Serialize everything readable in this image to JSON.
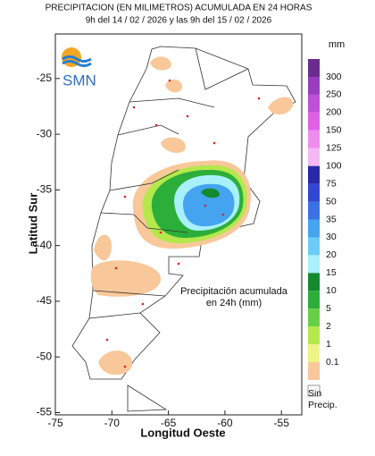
{
  "header": {
    "title": "PRECIPITACION (EN MILIMETROS) ACUMULADA EN 24 HORAS",
    "subtitle": "9h del 14 / 02 / 2026  y las 9h del 15 / 02 / 2026"
  },
  "logo": "SMN",
  "map": {
    "xlabel": "Longitud Oeste",
    "ylabel": "Latitud Sur",
    "xlim": [
      -75,
      -53.2
    ],
    "ylim": [
      -55.2,
      -21
    ],
    "xticks": [
      -75,
      -70,
      -65,
      -60,
      -55
    ],
    "yticks": [
      -55,
      -50,
      -45,
      -40,
      -35,
      -30,
      -25
    ],
    "annotation": [
      "Precipitación acumulada",
      "en 24h (mm)"
    ]
  },
  "legend": {
    "unit": "mm",
    "levels": [
      300,
      250,
      200,
      150,
      125,
      100,
      75,
      50,
      35,
      30,
      20,
      15,
      10,
      5,
      2,
      1,
      0.1
    ],
    "colors": [
      "#6a2c8e",
      "#9a3cc0",
      "#c050d8",
      "#e060e8",
      "#f08cf0",
      "#f4b8f4",
      "#2828a8",
      "#3048d0",
      "#3a72e4",
      "#44a4f0",
      "#6cccf8",
      "#a8f0fa",
      "#148a2c",
      "#2cae3a",
      "#66d044",
      "#b4e84c",
      "#eef488",
      "#f8c89a"
    ],
    "no_precip": [
      "Sin",
      "Precip."
    ]
  }
}
